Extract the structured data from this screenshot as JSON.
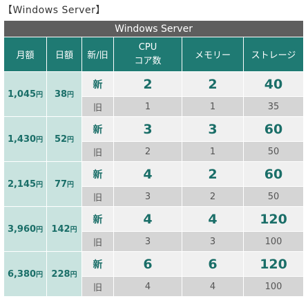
{
  "page_title": "【Windows Server】",
  "table": {
    "caption": "Windows Server",
    "headers": {
      "monthly": "月額",
      "daily": "日額",
      "new_old": "新/旧",
      "cpu_line1": "CPU",
      "cpu_line2": "コア数",
      "memory": "メモリー",
      "storage": "ストレージ"
    },
    "yen_unit": "円",
    "plans": [
      {
        "monthly": "1,045",
        "daily": "38",
        "new": {
          "label": "新",
          "cpu": "2",
          "memory": "2",
          "storage": "40"
        },
        "old": {
          "label": "旧",
          "cpu": "1",
          "memory": "1",
          "storage": "35"
        }
      },
      {
        "monthly": "1,430",
        "daily": "52",
        "new": {
          "label": "新",
          "cpu": "3",
          "memory": "3",
          "storage": "60"
        },
        "old": {
          "label": "旧",
          "cpu": "2",
          "memory": "1",
          "storage": "50"
        }
      },
      {
        "monthly": "2,145",
        "daily": "77",
        "new": {
          "label": "新",
          "cpu": "4",
          "memory": "2",
          "storage": "60"
        },
        "old": {
          "label": "旧",
          "cpu": "3",
          "memory": "2",
          "storage": "50"
        }
      },
      {
        "monthly": "3,960",
        "daily": "142",
        "new": {
          "label": "新",
          "cpu": "4",
          "memory": "4",
          "storage": "120"
        },
        "old": {
          "label": "旧",
          "cpu": "3",
          "memory": "3",
          "storage": "100"
        }
      },
      {
        "monthly": "6,380",
        "daily": "228",
        "new": {
          "label": "新",
          "cpu": "6",
          "memory": "6",
          "storage": "120"
        },
        "old": {
          "label": "旧",
          "cpu": "4",
          "memory": "4",
          "storage": "100"
        }
      }
    ]
  }
}
